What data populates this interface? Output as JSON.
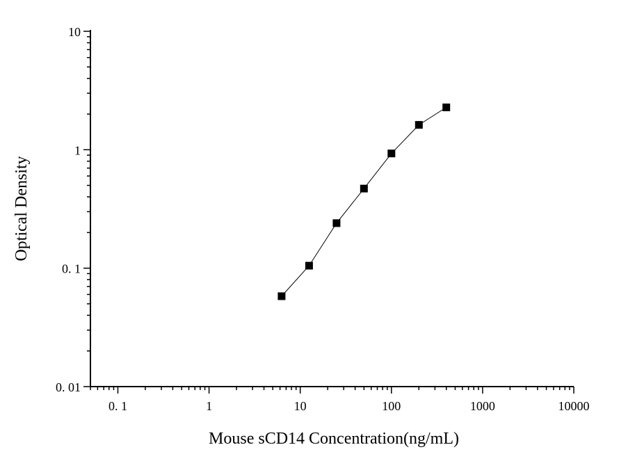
{
  "chart_data": {
    "type": "scatter",
    "title": "",
    "xlabel": "Mouse sCD14 Concentration(ng/mL)",
    "ylabel": "Optical Density",
    "x_scale": "log",
    "y_scale": "log",
    "xlim": [
      0.05,
      10000
    ],
    "ylim": [
      0.01,
      10
    ],
    "x_ticks": [
      {
        "value": 0.1,
        "label": "0. 1"
      },
      {
        "value": 1,
        "label": "1"
      },
      {
        "value": 10,
        "label": "10"
      },
      {
        "value": 100,
        "label": "100"
      },
      {
        "value": 1000,
        "label": "1000"
      },
      {
        "value": 10000,
        "label": "10000"
      }
    ],
    "y_ticks": [
      {
        "value": 0.01,
        "label": "0. 01"
      },
      {
        "value": 0.1,
        "label": "0. 1"
      },
      {
        "value": 1,
        "label": "1"
      },
      {
        "value": 10,
        "label": "10"
      }
    ],
    "grid": false,
    "legend": "none",
    "series": [
      {
        "x": [
          6.25,
          12.5,
          25,
          50,
          100,
          200,
          400
        ],
        "y": [
          0.058,
          0.105,
          0.24,
          0.47,
          0.93,
          1.62,
          2.28
        ],
        "marker": "square",
        "connected": true,
        "color": "#000000"
      }
    ]
  }
}
